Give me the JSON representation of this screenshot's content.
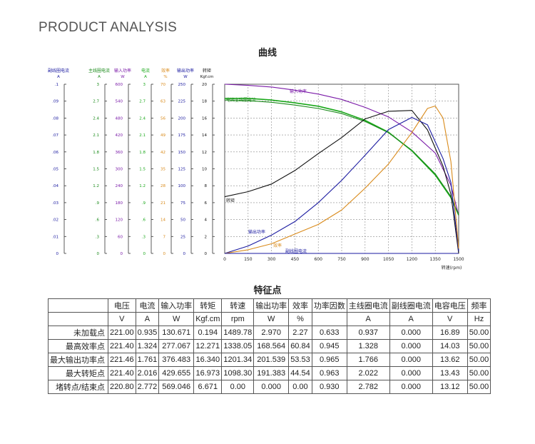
{
  "header": {
    "title": "PRODUCT ANALYSIS"
  },
  "chart_data": {
    "type": "line",
    "title": "曲线",
    "xlabel": "转速(rpm)",
    "x_ticks": [
      "0",
      "150",
      "300",
      "450",
      "600",
      "750",
      "900",
      "1050",
      "1200",
      "1350",
      "1500"
    ],
    "xlim": [
      0,
      1500
    ],
    "grid": true,
    "axes": [
      {
        "name": "副线圈电流",
        "unit": "A",
        "color": "#1a1aa0",
        "ticks": [
          "0",
          ".01",
          ".02",
          ".03",
          ".04",
          ".05",
          ".06",
          ".07",
          ".08",
          ".09",
          ".1"
        ]
      },
      {
        "name": "主线圈电流",
        "unit": "A",
        "color": "#1a8a1a",
        "ticks": [
          "0",
          ".3",
          ".6",
          ".9",
          "1.2",
          "1.5",
          "1.8",
          "2.1",
          "2.4",
          "2.7",
          "3"
        ]
      },
      {
        "name": "输入功率",
        "unit": "W",
        "color": "#7a1aa8",
        "ticks": [
          "0",
          "60",
          "120",
          "180",
          "240",
          "300",
          "360",
          "420",
          "480",
          "540",
          "600"
        ]
      },
      {
        "name": "电流",
        "unit": "A",
        "color": "#1aa81a",
        "ticks": [
          "0",
          ".3",
          ".6",
          ".9",
          "1.2",
          "1.5",
          "1.8",
          "2.1",
          "2.4",
          "2.7",
          "3"
        ]
      },
      {
        "name": "效率",
        "unit": "%",
        "color": "#d98a1a",
        "ticks": [
          "0",
          "7",
          "14",
          "21",
          "28",
          "35",
          "42",
          "49",
          "56",
          "63",
          "70"
        ]
      },
      {
        "name": "输出功率",
        "unit": "W",
        "color": "#1a1aa0",
        "ticks": [
          "0",
          "25",
          "50",
          "75",
          "100",
          "125",
          "150",
          "175",
          "200",
          "225",
          "250"
        ]
      },
      {
        "name": "转矩",
        "unit": "Kgf.cm",
        "color": "#111111",
        "ticks": [
          "0",
          "2",
          "4",
          "6",
          "8",
          "10",
          "12",
          "14",
          "16",
          "18",
          "20"
        ]
      }
    ],
    "series": [
      {
        "name": "输入功率",
        "color": "#7a1aa8",
        "x": [
          0,
          150,
          300,
          450,
          600,
          750,
          900,
          1050,
          1200,
          1350,
          1450,
          1500
        ],
        "y": [
          600,
          596,
          590,
          579,
          565,
          546,
          518,
          484,
          431,
          356,
          242,
          135
        ]
      },
      {
        "name": "电流",
        "color": "#1aa81a",
        "x": [
          0,
          150,
          300,
          450,
          600,
          750,
          900,
          1050,
          1200,
          1350,
          1450,
          1500
        ],
        "y": [
          2.75,
          2.75,
          2.72,
          2.67,
          2.61,
          2.51,
          2.36,
          2.15,
          1.82,
          1.39,
          0.99,
          0.68
        ]
      },
      {
        "name": "主线圈电流",
        "color": "#1a8a1a",
        "x": [
          0,
          150,
          300,
          450,
          600,
          750,
          900,
          1050,
          1200,
          1350,
          1450,
          1500
        ],
        "y": [
          2.72,
          2.71,
          2.68,
          2.63,
          2.57,
          2.48,
          2.34,
          2.14,
          1.83,
          1.41,
          1.01,
          0.68
        ]
      },
      {
        "name": "转矩",
        "color": "#111111",
        "x": [
          0,
          150,
          300,
          450,
          600,
          750,
          900,
          1050,
          1200,
          1300,
          1400,
          1450,
          1500
        ],
        "y": [
          6.7,
          7.3,
          8.2,
          9.8,
          11.8,
          13.7,
          15.9,
          16.8,
          16.9,
          14.6,
          10.3,
          7.0,
          0
        ]
      },
      {
        "name": "输出功率",
        "color": "#1a1aa0",
        "x": [
          0,
          150,
          300,
          450,
          600,
          750,
          900,
          1050,
          1200,
          1300,
          1400,
          1450,
          1500
        ],
        "y": [
          0,
          11,
          27,
          47,
          75,
          108,
          145,
          183,
          201,
          190,
          140,
          105,
          3
        ]
      },
      {
        "name": "效率",
        "color": "#d98a1a",
        "x": [
          0,
          150,
          300,
          450,
          600,
          750,
          900,
          1050,
          1200,
          1300,
          1350,
          1400,
          1450,
          1500
        ],
        "y": [
          0,
          1.5,
          4,
          8,
          12,
          18,
          27,
          37,
          50,
          60,
          61,
          56,
          38,
          2
        ]
      },
      {
        "name": "副线圈电流",
        "color": "#1a1aa0",
        "x": [
          0,
          1500
        ],
        "y": [
          0,
          0
        ]
      }
    ],
    "annotations": [
      "输入功率",
      "电流主线圈电流",
      "转矩",
      "输出功率",
      "效率",
      "副线圈电流"
    ]
  },
  "table": {
    "title": "特征点",
    "header1": [
      "",
      "电压",
      "电流",
      "输入功率",
      "转矩",
      "转速",
      "输出功率",
      "效率",
      "功率因数",
      "主线圈电流",
      "副线圈电流",
      "电容电压",
      "频率"
    ],
    "header2": [
      "",
      "V",
      "A",
      "W",
      "Kgf.cm",
      "rpm",
      "W",
      "%",
      "",
      "A",
      "A",
      "V",
      "Hz"
    ],
    "rows": [
      [
        "未加载点",
        "221.00",
        "0.935",
        "130.671",
        "0.194",
        "1489.78",
        "2.970",
        "2.27",
        "0.633",
        "0.937",
        "0.000",
        "16.89",
        "50.00"
      ],
      [
        "最高效率点",
        "221.40",
        "1.324",
        "277.067",
        "12.271",
        "1338.05",
        "168.564",
        "60.84",
        "0.945",
        "1.328",
        "0.000",
        "14.03",
        "50.00"
      ],
      [
        "最大输出功率点",
        "221.46",
        "1.761",
        "376.483",
        "16.340",
        "1201.34",
        "201.539",
        "53.53",
        "0.965",
        "1.766",
        "0.000",
        "13.62",
        "50.00"
      ],
      [
        "最大转矩点",
        "221.40",
        "2.016",
        "429.655",
        "16.973",
        "1098.30",
        "191.383",
        "44.54",
        "0.963",
        "2.022",
        "0.000",
        "13.43",
        "50.00"
      ],
      [
        "堵转点/结束点",
        "220.80",
        "2.772",
        "569.046",
        "6.671",
        "0.00",
        "0.000",
        "0.00",
        "0.930",
        "2.782",
        "0.000",
        "13.12",
        "50.00"
      ]
    ]
  }
}
